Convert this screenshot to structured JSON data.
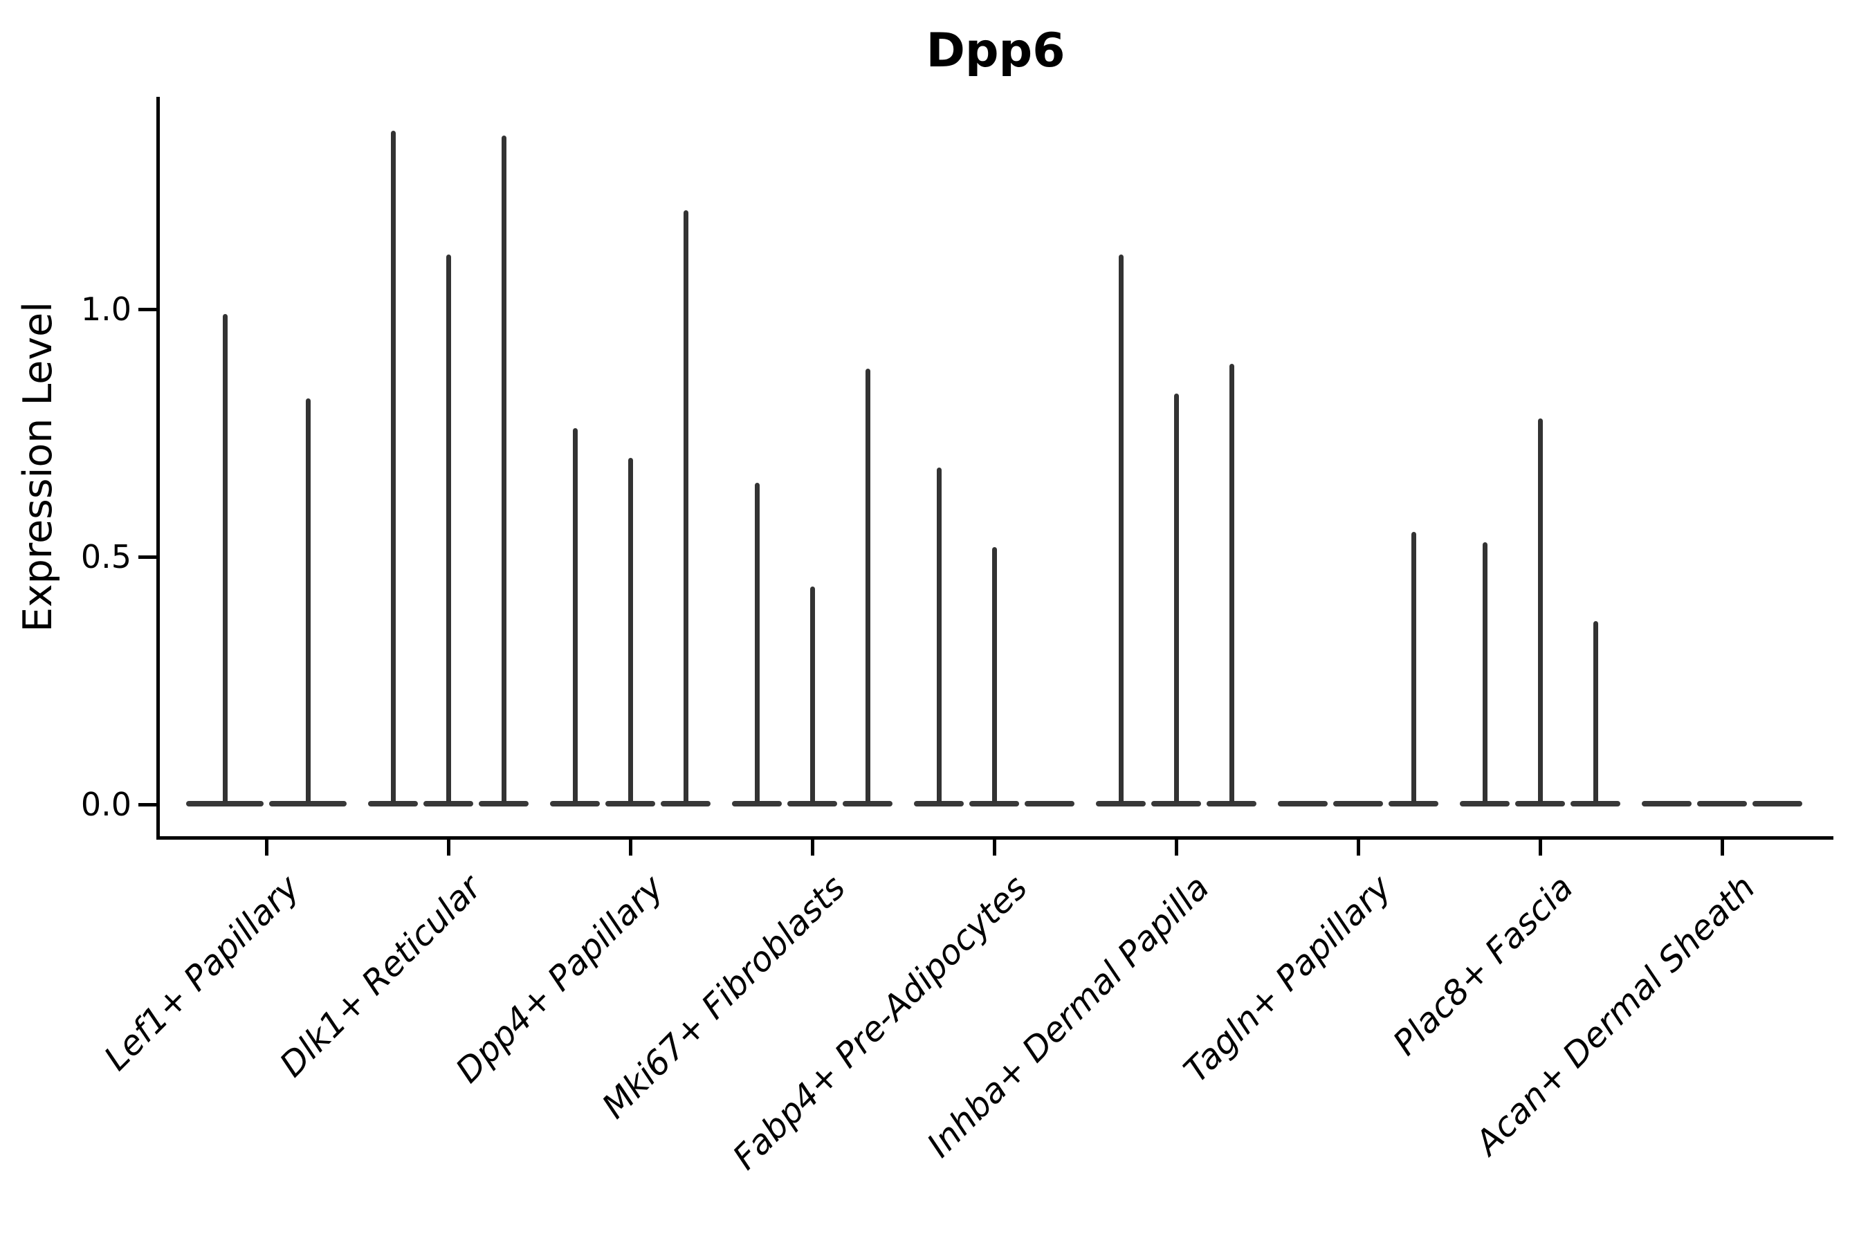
{
  "title": "Dpp6",
  "y_axis": {
    "label": "Expression Level",
    "tick_labels": [
      "0.0",
      "0.5",
      "1.0"
    ]
  },
  "colors": {
    "violin": "#333333",
    "axis": "#000000",
    "text": "#000000",
    "background": "#ffffff"
  },
  "chart_data": {
    "type": "violin",
    "title": "Dpp6",
    "xlabel": "",
    "ylabel": "Expression Level",
    "ylim": [
      -0.07,
      1.43
    ],
    "yticks": [
      0.0,
      0.5,
      1.0
    ],
    "grid": false,
    "legend": "none",
    "style_note": "sparse single-cell expression violins: each violin is a wide flat base at 0 with a thin vertical spike up to the maximum expression; each cluster holds 2-3 sub-violins; value 0 means flat violin with no spike",
    "categories": [
      "Lef1+ Papillary",
      "Dlk1+ Reticular",
      "Dpp4+ Papillary",
      "Mki67+ Fibroblasts",
      "Fabp4+ Pre-Adipocytes",
      "Inhba+ Dermal Papilla",
      "Tagln+ Papillary",
      "Plac8+ Fascia",
      "Acan+ Dermal Sheath"
    ],
    "groups": [
      {
        "category": "Lef1+ Papillary",
        "violin_spike_maxima": [
          0.99,
          0.82
        ]
      },
      {
        "category": "Dlk1+ Reticular",
        "violin_spike_maxima": [
          1.36,
          1.11,
          1.35
        ]
      },
      {
        "category": "Dpp4+ Papillary",
        "violin_spike_maxima": [
          0.76,
          0.7,
          1.2
        ]
      },
      {
        "category": "Mki67+ Fibroblasts",
        "violin_spike_maxima": [
          0.65,
          0.44,
          0.88
        ]
      },
      {
        "category": "Fabp4+ Pre-Adipocytes",
        "violin_spike_maxima": [
          0.68,
          0.52,
          0
        ]
      },
      {
        "category": "Inhba+ Dermal Papilla",
        "violin_spike_maxima": [
          1.11,
          0.83,
          0.89
        ]
      },
      {
        "category": "Tagln+ Papillary",
        "violin_spike_maxima": [
          0,
          0,
          0.55
        ]
      },
      {
        "category": "Plac8+ Fascia",
        "violin_spike_maxima": [
          0.53,
          0.78,
          0.37
        ]
      },
      {
        "category": "Acan+ Dermal Sheath",
        "violin_spike_maxima": [
          0,
          0,
          0
        ]
      }
    ]
  }
}
